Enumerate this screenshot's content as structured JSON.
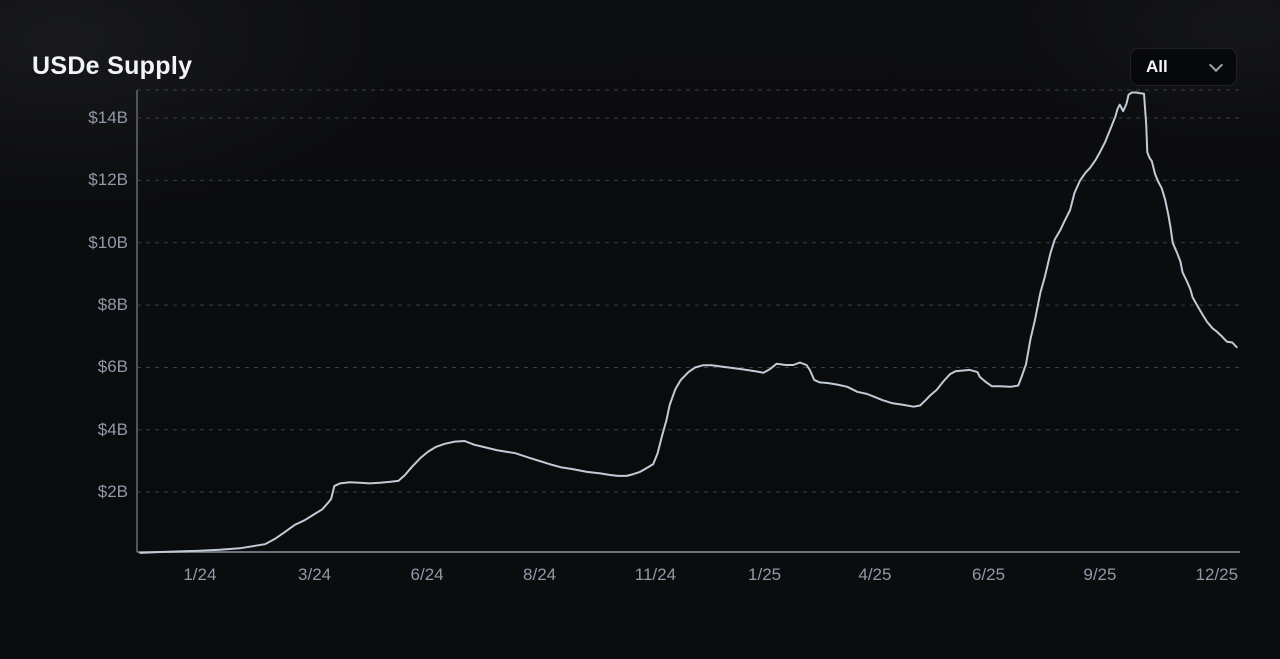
{
  "header": {
    "title": "USDe Supply",
    "range_selector": {
      "selected": "All"
    }
  },
  "chart_data": {
    "type": "line",
    "title": "USDe Supply",
    "unit": "USD billions",
    "legend": "none",
    "grid": "dashed horizontal",
    "line_color": "#c2cad6",
    "y_axis": {
      "min": 0,
      "max_at_top": 14.9,
      "ticks": [
        {
          "label": "$2B",
          "value": 2
        },
        {
          "label": "$4B",
          "value": 4
        },
        {
          "label": "$6B",
          "value": 6
        },
        {
          "label": "$8B",
          "value": 8
        },
        {
          "label": "$10B",
          "value": 10
        },
        {
          "label": "$12B",
          "value": 12
        },
        {
          "label": "$14B",
          "value": 14
        }
      ]
    },
    "x_axis": {
      "ticks": [
        {
          "label": "1/24",
          "pos": 0.057
        },
        {
          "label": "3/24",
          "pos": 0.161
        },
        {
          "label": "6/24",
          "pos": 0.263
        },
        {
          "label": "8/24",
          "pos": 0.365
        },
        {
          "label": "11/24",
          "pos": 0.47
        },
        {
          "label": "1/25",
          "pos": 0.569
        },
        {
          "label": "4/25",
          "pos": 0.669
        },
        {
          "label": "6/25",
          "pos": 0.772
        },
        {
          "label": "9/25",
          "pos": 0.873
        },
        {
          "label": "12/25",
          "pos": 0.979
        }
      ]
    },
    "series": [
      {
        "name": "USDe Supply",
        "points": [
          [
            0.003,
            0.05
          ],
          [
            0.021,
            0.08
          ],
          [
            0.039,
            0.1
          ],
          [
            0.057,
            0.12
          ],
          [
            0.075,
            0.15
          ],
          [
            0.093,
            0.2
          ],
          [
            0.107,
            0.28
          ],
          [
            0.116,
            0.33
          ],
          [
            0.125,
            0.5
          ],
          [
            0.134,
            0.72
          ],
          [
            0.143,
            0.95
          ],
          [
            0.152,
            1.1
          ],
          [
            0.161,
            1.3
          ],
          [
            0.168,
            1.45
          ],
          [
            0.173,
            1.65
          ],
          [
            0.176,
            1.78
          ],
          [
            0.179,
            2.2
          ],
          [
            0.184,
            2.28
          ],
          [
            0.193,
            2.32
          ],
          [
            0.202,
            2.3
          ],
          [
            0.211,
            2.28
          ],
          [
            0.22,
            2.3
          ],
          [
            0.229,
            2.33
          ],
          [
            0.237,
            2.36
          ],
          [
            0.243,
            2.55
          ],
          [
            0.249,
            2.8
          ],
          [
            0.257,
            3.1
          ],
          [
            0.264,
            3.3
          ],
          [
            0.271,
            3.45
          ],
          [
            0.279,
            3.55
          ],
          [
            0.288,
            3.62
          ],
          [
            0.297,
            3.64
          ],
          [
            0.306,
            3.52
          ],
          [
            0.314,
            3.45
          ],
          [
            0.326,
            3.35
          ],
          [
            0.334,
            3.3
          ],
          [
            0.343,
            3.25
          ],
          [
            0.356,
            3.1
          ],
          [
            0.365,
            3.0
          ],
          [
            0.374,
            2.9
          ],
          [
            0.384,
            2.8
          ],
          [
            0.395,
            2.74
          ],
          [
            0.408,
            2.65
          ],
          [
            0.42,
            2.6
          ],
          [
            0.429,
            2.55
          ],
          [
            0.436,
            2.52
          ],
          [
            0.444,
            2.52
          ],
          [
            0.45,
            2.58
          ],
          [
            0.456,
            2.65
          ],
          [
            0.462,
            2.77
          ],
          [
            0.468,
            2.9
          ],
          [
            0.472,
            3.25
          ],
          [
            0.476,
            3.8
          ],
          [
            0.48,
            4.3
          ],
          [
            0.483,
            4.8
          ],
          [
            0.488,
            5.3
          ],
          [
            0.493,
            5.6
          ],
          [
            0.5,
            5.85
          ],
          [
            0.506,
            6.0
          ],
          [
            0.513,
            6.07
          ],
          [
            0.521,
            6.07
          ],
          [
            0.531,
            6.02
          ],
          [
            0.547,
            5.95
          ],
          [
            0.562,
            5.87
          ],
          [
            0.568,
            5.83
          ],
          [
            0.574,
            5.95
          ],
          [
            0.58,
            6.12
          ],
          [
            0.588,
            6.08
          ],
          [
            0.595,
            6.08
          ],
          [
            0.601,
            6.16
          ],
          [
            0.607,
            6.08
          ],
          [
            0.61,
            5.92
          ],
          [
            0.614,
            5.6
          ],
          [
            0.619,
            5.52
          ],
          [
            0.626,
            5.5
          ],
          [
            0.635,
            5.45
          ],
          [
            0.644,
            5.38
          ],
          [
            0.653,
            5.22
          ],
          [
            0.662,
            5.15
          ],
          [
            0.669,
            5.05
          ],
          [
            0.676,
            4.95
          ],
          [
            0.685,
            4.85
          ],
          [
            0.695,
            4.8
          ],
          [
            0.704,
            4.74
          ],
          [
            0.71,
            4.78
          ],
          [
            0.715,
            4.95
          ],
          [
            0.719,
            5.1
          ],
          [
            0.725,
            5.28
          ],
          [
            0.731,
            5.55
          ],
          [
            0.737,
            5.78
          ],
          [
            0.742,
            5.88
          ],
          [
            0.748,
            5.9
          ],
          [
            0.755,
            5.92
          ],
          [
            0.762,
            5.85
          ],
          [
            0.764,
            5.7
          ],
          [
            0.769,
            5.55
          ],
          [
            0.775,
            5.4
          ],
          [
            0.782,
            5.4
          ],
          [
            0.792,
            5.38
          ],
          [
            0.799,
            5.42
          ],
          [
            0.802,
            5.7
          ],
          [
            0.806,
            6.1
          ],
          [
            0.81,
            6.9
          ],
          [
            0.814,
            7.5
          ],
          [
            0.819,
            8.4
          ],
          [
            0.823,
            8.9
          ],
          [
            0.828,
            9.65
          ],
          [
            0.832,
            10.1
          ],
          [
            0.837,
            10.4
          ],
          [
            0.841,
            10.7
          ],
          [
            0.846,
            11.05
          ],
          [
            0.85,
            11.6
          ],
          [
            0.855,
            12.0
          ],
          [
            0.86,
            12.25
          ],
          [
            0.864,
            12.4
          ],
          [
            0.869,
            12.65
          ],
          [
            0.873,
            12.9
          ],
          [
            0.878,
            13.25
          ],
          [
            0.882,
            13.6
          ],
          [
            0.887,
            14.05
          ],
          [
            0.889,
            14.3
          ],
          [
            0.891,
            14.43
          ],
          [
            0.894,
            14.22
          ],
          [
            0.897,
            14.45
          ],
          [
            0.899,
            14.75
          ],
          [
            0.902,
            14.82
          ],
          [
            0.906,
            14.82
          ],
          [
            0.909,
            14.8
          ],
          [
            0.913,
            14.78
          ],
          [
            0.915,
            13.8
          ],
          [
            0.916,
            12.9
          ],
          [
            0.918,
            12.72
          ],
          [
            0.92,
            12.62
          ],
          [
            0.923,
            12.2
          ],
          [
            0.926,
            11.95
          ],
          [
            0.929,
            11.75
          ],
          [
            0.932,
            11.4
          ],
          [
            0.935,
            10.9
          ],
          [
            0.937,
            10.5
          ],
          [
            0.939,
            10.0
          ],
          [
            0.943,
            9.67
          ],
          [
            0.946,
            9.4
          ],
          [
            0.948,
            9.05
          ],
          [
            0.952,
            8.75
          ],
          [
            0.955,
            8.5
          ],
          [
            0.957,
            8.25
          ],
          [
            0.961,
            8.0
          ],
          [
            0.966,
            7.7
          ],
          [
            0.97,
            7.47
          ],
          [
            0.975,
            7.26
          ],
          [
            0.979,
            7.15
          ],
          [
            0.984,
            6.98
          ],
          [
            0.988,
            6.83
          ],
          [
            0.993,
            6.8
          ],
          [
            0.997,
            6.65
          ]
        ]
      }
    ]
  }
}
